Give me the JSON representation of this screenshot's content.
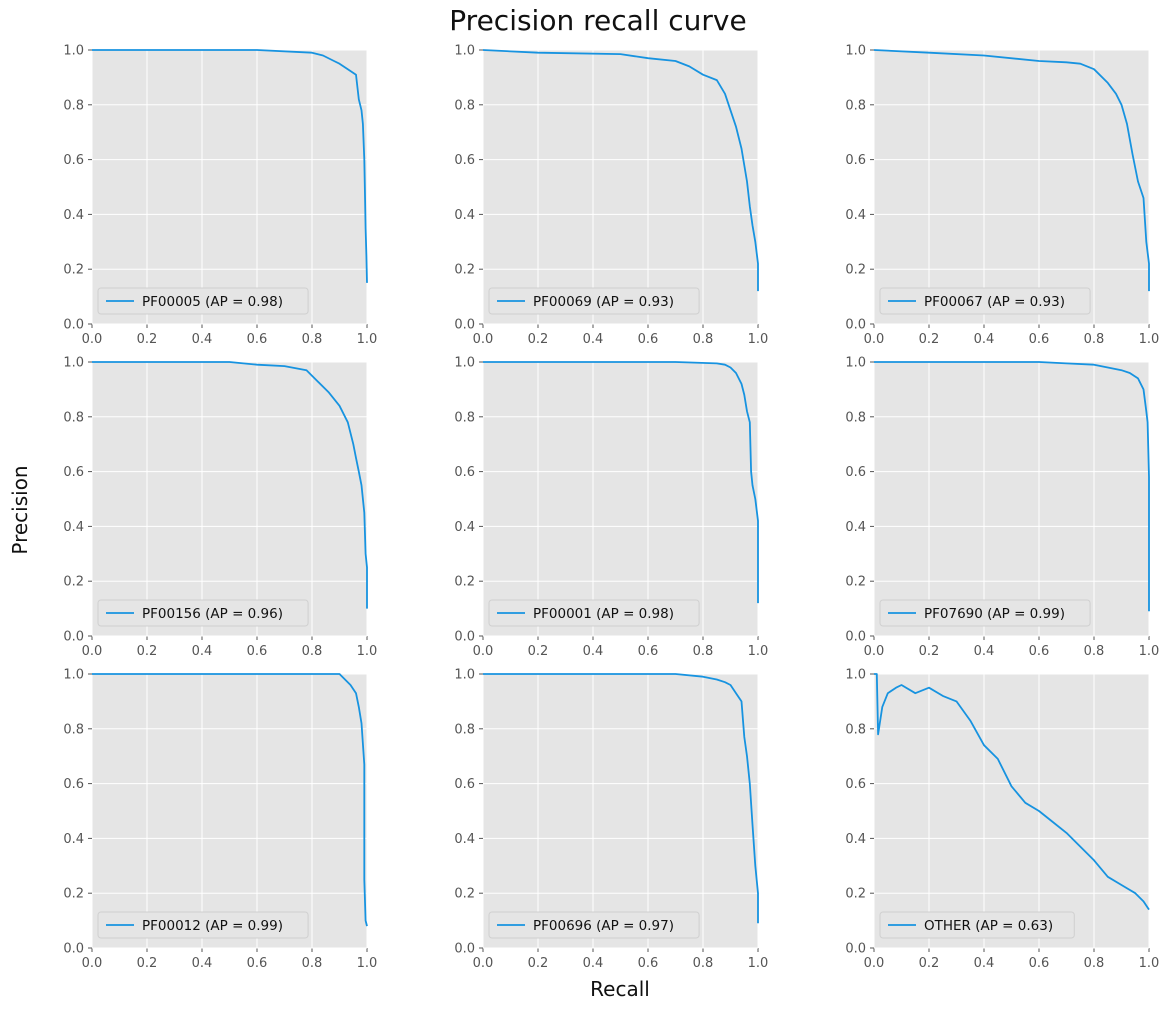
{
  "figure": {
    "title": "Precision recall curve",
    "xlabel": "Recall",
    "ylabel": "Precision"
  },
  "colors": {
    "line": "#1793e0",
    "panel_bg": "#e5e5e5",
    "grid": "#ffffff",
    "tick_text": "#555555"
  },
  "chart_data": [
    {
      "type": "line",
      "series": [
        {
          "name": "PF00005 (AP = 0.98)",
          "x": [
            0,
            0.6,
            0.8,
            0.84,
            0.88,
            0.9,
            0.93,
            0.96,
            0.97,
            0.98,
            0.985,
            0.99,
            0.993,
            0.995,
            0.998,
            1.0
          ],
          "y": [
            1.0,
            1.0,
            0.99,
            0.98,
            0.96,
            0.95,
            0.93,
            0.91,
            0.82,
            0.78,
            0.73,
            0.6,
            0.45,
            0.35,
            0.25,
            0.15
          ]
        }
      ],
      "xlim": [
        0,
        1
      ],
      "ylim": [
        0,
        1
      ],
      "xticks": [
        "0.0",
        "0.2",
        "0.4",
        "0.6",
        "0.8",
        "1.0"
      ],
      "yticks": [
        "0.0",
        "0.2",
        "0.4",
        "0.6",
        "0.8",
        "1.0"
      ],
      "grid": true,
      "legend": "lower-left"
    },
    {
      "type": "line",
      "series": [
        {
          "name": "PF00069 (AP = 0.93)",
          "x": [
            0,
            0.2,
            0.5,
            0.6,
            0.7,
            0.75,
            0.8,
            0.85,
            0.88,
            0.9,
            0.92,
            0.94,
            0.96,
            0.97,
            0.98,
            0.99,
            1.0,
            1.0
          ],
          "y": [
            1.0,
            0.99,
            0.985,
            0.97,
            0.96,
            0.94,
            0.91,
            0.89,
            0.84,
            0.78,
            0.72,
            0.64,
            0.52,
            0.43,
            0.36,
            0.3,
            0.22,
            0.12
          ]
        }
      ],
      "xlim": [
        0,
        1
      ],
      "ylim": [
        0,
        1
      ],
      "xticks": [
        "0.0",
        "0.2",
        "0.4",
        "0.6",
        "0.8",
        "1.0"
      ],
      "yticks": [
        "0.0",
        "0.2",
        "0.4",
        "0.6",
        "0.8",
        "1.0"
      ],
      "grid": true,
      "legend": "lower-left"
    },
    {
      "type": "line",
      "series": [
        {
          "name": "PF00067 (AP = 0.93)",
          "x": [
            0,
            0.2,
            0.4,
            0.6,
            0.7,
            0.75,
            0.8,
            0.85,
            0.88,
            0.9,
            0.92,
            0.94,
            0.96,
            0.98,
            0.99,
            1.0,
            1.0
          ],
          "y": [
            1.0,
            0.99,
            0.98,
            0.96,
            0.955,
            0.95,
            0.93,
            0.88,
            0.84,
            0.8,
            0.73,
            0.62,
            0.52,
            0.46,
            0.3,
            0.22,
            0.12
          ]
        }
      ],
      "xlim": [
        0,
        1
      ],
      "ylim": [
        0,
        1
      ],
      "xticks": [
        "0.0",
        "0.2",
        "0.4",
        "0.6",
        "0.8",
        "1.0"
      ],
      "yticks": [
        "0.0",
        "0.2",
        "0.4",
        "0.6",
        "0.8",
        "1.0"
      ],
      "grid": true,
      "legend": "lower-left"
    },
    {
      "type": "line",
      "series": [
        {
          "name": "PF00156 (AP = 0.96)",
          "x": [
            0,
            0.5,
            0.6,
            0.7,
            0.78,
            0.82,
            0.86,
            0.9,
            0.93,
            0.95,
            0.96,
            0.97,
            0.98,
            0.99,
            0.995,
            1.0,
            1.0
          ],
          "y": [
            1.0,
            1.0,
            0.99,
            0.985,
            0.97,
            0.93,
            0.89,
            0.84,
            0.78,
            0.7,
            0.65,
            0.6,
            0.55,
            0.45,
            0.3,
            0.25,
            0.1
          ]
        }
      ],
      "xlim": [
        0,
        1
      ],
      "ylim": [
        0,
        1
      ],
      "xticks": [
        "0.0",
        "0.2",
        "0.4",
        "0.6",
        "0.8",
        "1.0"
      ],
      "yticks": [
        "0.0",
        "0.2",
        "0.4",
        "0.6",
        "0.8",
        "1.0"
      ],
      "grid": true,
      "legend": "lower-left"
    },
    {
      "type": "line",
      "series": [
        {
          "name": "PF00001 (AP = 0.98)",
          "x": [
            0,
            0.7,
            0.85,
            0.88,
            0.9,
            0.92,
            0.94,
            0.95,
            0.96,
            0.97,
            0.975,
            0.98,
            0.99,
            1.0,
            1.0
          ],
          "y": [
            1.0,
            1.0,
            0.995,
            0.99,
            0.98,
            0.96,
            0.92,
            0.88,
            0.82,
            0.78,
            0.6,
            0.55,
            0.5,
            0.42,
            0.12
          ]
        }
      ],
      "xlim": [
        0,
        1
      ],
      "ylim": [
        0,
        1
      ],
      "xticks": [
        "0.0",
        "0.2",
        "0.4",
        "0.6",
        "0.8",
        "1.0"
      ],
      "yticks": [
        "0.0",
        "0.2",
        "0.4",
        "0.6",
        "0.8",
        "1.0"
      ],
      "grid": true,
      "legend": "lower-left"
    },
    {
      "type": "line",
      "series": [
        {
          "name": "PF07690 (AP = 0.99)",
          "x": [
            0,
            0.6,
            0.7,
            0.8,
            0.85,
            0.9,
            0.93,
            0.96,
            0.98,
            0.99,
            0.995,
            1.0,
            1.0
          ],
          "y": [
            1.0,
            1.0,
            0.995,
            0.99,
            0.98,
            0.97,
            0.96,
            0.94,
            0.9,
            0.82,
            0.78,
            0.58,
            0.09
          ]
        }
      ],
      "xlim": [
        0,
        1
      ],
      "ylim": [
        0,
        1
      ],
      "xticks": [
        "0.0",
        "0.2",
        "0.4",
        "0.6",
        "0.8",
        "1.0"
      ],
      "yticks": [
        "0.0",
        "0.2",
        "0.4",
        "0.6",
        "0.8",
        "1.0"
      ],
      "grid": true,
      "legend": "lower-left"
    },
    {
      "type": "line",
      "series": [
        {
          "name": "PF00012 (AP = 0.99)",
          "x": [
            0,
            0.9,
            0.92,
            0.94,
            0.96,
            0.97,
            0.98,
            0.99,
            0.99,
            0.995,
            1.0
          ],
          "y": [
            1.0,
            1.0,
            0.98,
            0.96,
            0.93,
            0.88,
            0.82,
            0.67,
            0.25,
            0.1,
            0.08
          ]
        }
      ],
      "xlim": [
        0,
        1
      ],
      "ylim": [
        0,
        1
      ],
      "xticks": [
        "0.0",
        "0.2",
        "0.4",
        "0.6",
        "0.8",
        "1.0"
      ],
      "yticks": [
        "0.0",
        "0.2",
        "0.4",
        "0.6",
        "0.8",
        "1.0"
      ],
      "grid": true,
      "legend": "lower-left"
    },
    {
      "type": "line",
      "series": [
        {
          "name": "PF00696 (AP = 0.97)",
          "x": [
            0,
            0.7,
            0.8,
            0.85,
            0.88,
            0.9,
            0.92,
            0.94,
            0.95,
            0.96,
            0.97,
            0.98,
            0.99,
            1.0,
            1.0
          ],
          "y": [
            1.0,
            1.0,
            0.99,
            0.98,
            0.97,
            0.96,
            0.93,
            0.9,
            0.77,
            0.7,
            0.6,
            0.45,
            0.3,
            0.2,
            0.09
          ]
        }
      ],
      "xlim": [
        0,
        1
      ],
      "ylim": [
        0,
        1
      ],
      "xticks": [
        "0.0",
        "0.2",
        "0.4",
        "0.6",
        "0.8",
        "1.0"
      ],
      "yticks": [
        "0.0",
        "0.2",
        "0.4",
        "0.6",
        "0.8",
        "1.0"
      ],
      "grid": true,
      "legend": "lower-left"
    },
    {
      "type": "line",
      "series": [
        {
          "name": "OTHER (AP = 0.63)",
          "x": [
            0,
            0.01,
            0.015,
            0.03,
            0.05,
            0.08,
            0.1,
            0.15,
            0.2,
            0.25,
            0.3,
            0.35,
            0.4,
            0.45,
            0.5,
            0.55,
            0.6,
            0.65,
            0.7,
            0.75,
            0.8,
            0.85,
            0.9,
            0.95,
            0.98,
            1.0
          ],
          "y": [
            1.0,
            1.0,
            0.78,
            0.88,
            0.93,
            0.95,
            0.96,
            0.93,
            0.95,
            0.92,
            0.9,
            0.83,
            0.74,
            0.69,
            0.59,
            0.53,
            0.5,
            0.46,
            0.42,
            0.37,
            0.32,
            0.26,
            0.23,
            0.2,
            0.17,
            0.14
          ]
        }
      ],
      "xlim": [
        0,
        1
      ],
      "ylim": [
        0,
        1
      ],
      "xticks": [
        "0.0",
        "0.2",
        "0.4",
        "0.6",
        "0.8",
        "1.0"
      ],
      "yticks": [
        "0.0",
        "0.2",
        "0.4",
        "0.6",
        "0.8",
        "1.0"
      ],
      "grid": true,
      "legend": "lower-left"
    }
  ]
}
